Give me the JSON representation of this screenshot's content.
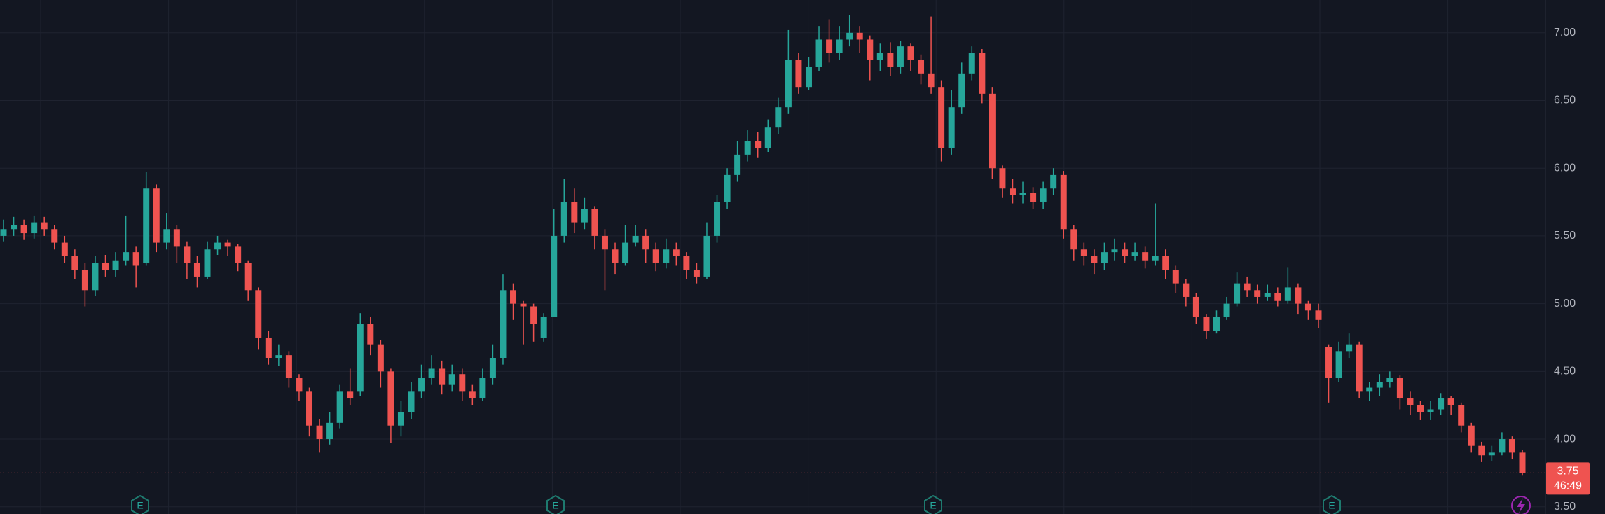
{
  "chart_data": {
    "type": "candlestick",
    "open": [
      5.5,
      5.55,
      5.58,
      5.52,
      5.6,
      5.55,
      5.45,
      5.35,
      5.25,
      5.1,
      5.3,
      5.25,
      5.32,
      5.38,
      5.3,
      5.85,
      5.45,
      5.55,
      5.42,
      5.3,
      5.2,
      5.4,
      5.45,
      5.42,
      5.3,
      5.1,
      4.75,
      4.6,
      4.62,
      4.45,
      4.35,
      4.1,
      4.0,
      4.12,
      4.35,
      4.35,
      4.85,
      4.7,
      4.5,
      4.1,
      4.2,
      4.35,
      4.45,
      4.52,
      4.4,
      4.48,
      4.35,
      4.3,
      4.45,
      4.6,
      5.1,
      5.0,
      4.98,
      4.75,
      4.9,
      5.5,
      5.75,
      5.6,
      5.7,
      5.5,
      5.4,
      5.3,
      5.45,
      5.5,
      5.4,
      5.3,
      5.4,
      5.35,
      5.25,
      5.2,
      5.5,
      5.75,
      5.95,
      6.1,
      6.2,
      6.15,
      6.3,
      6.45,
      6.8,
      6.6,
      6.75,
      6.95,
      6.85,
      6.95,
      7.0,
      6.95,
      6.8,
      6.85,
      6.75,
      6.9,
      6.8,
      6.7,
      6.6,
      6.15,
      6.45,
      6.7,
      6.85,
      6.55,
      6.0,
      5.85,
      5.8,
      5.82,
      5.75,
      5.85,
      5.95,
      5.55,
      5.4,
      5.35,
      5.3,
      5.38,
      5.4,
      5.35,
      5.38,
      5.32,
      5.35,
      5.25,
      5.15,
      5.05,
      4.9,
      4.8,
      4.9,
      5.0,
      5.15,
      5.1,
      5.05,
      5.08,
      5.02,
      5.12,
      5.0,
      4.95,
      4.68,
      4.45,
      4.65,
      4.7,
      4.35,
      4.38,
      4.42,
      4.45,
      4.3,
      4.25,
      4.2,
      4.22,
      4.3,
      4.25,
      4.1,
      3.95,
      3.88,
      3.9,
      4.0,
      3.9
    ],
    "high": [
      5.62,
      5.64,
      5.62,
      5.65,
      5.64,
      5.58,
      5.5,
      5.4,
      5.3,
      5.35,
      5.36,
      5.38,
      5.65,
      5.42,
      5.97,
      5.88,
      5.67,
      5.58,
      5.46,
      5.35,
      5.46,
      5.5,
      5.47,
      5.44,
      5.32,
      5.12,
      4.8,
      4.7,
      4.65,
      4.48,
      4.38,
      4.15,
      4.2,
      4.4,
      4.52,
      4.93,
      4.9,
      4.73,
      4.52,
      4.28,
      4.42,
      4.55,
      4.62,
      4.58,
      4.55,
      4.52,
      4.4,
      4.52,
      4.7,
      5.22,
      5.15,
      5.02,
      5.0,
      4.93,
      5.7,
      5.92,
      5.85,
      5.78,
      5.72,
      5.55,
      5.45,
      5.58,
      5.58,
      5.55,
      5.45,
      5.48,
      5.45,
      5.38,
      5.3,
      5.6,
      5.8,
      6.0,
      6.2,
      6.28,
      6.27,
      6.36,
      6.52,
      7.02,
      6.85,
      6.82,
      7.05,
      7.1,
      7.05,
      7.13,
      7.05,
      6.98,
      6.92,
      6.93,
      6.94,
      6.92,
      6.84,
      7.12,
      6.65,
      6.58,
      6.78,
      6.9,
      6.88,
      6.6,
      6.02,
      5.92,
      5.9,
      5.86,
      5.9,
      6.0,
      5.98,
      5.58,
      5.45,
      5.4,
      5.45,
      5.48,
      5.45,
      5.45,
      5.42,
      5.74,
      5.4,
      5.28,
      5.18,
      5.08,
      4.92,
      4.95,
      5.05,
      5.23,
      5.2,
      5.14,
      5.14,
      5.12,
      5.27,
      5.15,
      5.02,
      5.0,
      4.7,
      4.72,
      4.78,
      4.72,
      4.42,
      4.48,
      4.5,
      4.47,
      4.35,
      4.28,
      4.28,
      4.34,
      4.32,
      4.27,
      4.12,
      3.98,
      3.95,
      4.05,
      4.02,
      3.92
    ],
    "low": [
      5.46,
      5.5,
      5.47,
      5.48,
      5.5,
      5.4,
      5.3,
      5.18,
      4.98,
      5.06,
      5.2,
      5.2,
      5.28,
      5.12,
      5.28,
      5.38,
      5.4,
      5.3,
      5.18,
      5.12,
      5.18,
      5.36,
      5.35,
      5.24,
      5.02,
      4.66,
      4.55,
      4.54,
      4.38,
      4.28,
      4.02,
      3.9,
      3.96,
      4.08,
      4.25,
      4.32,
      4.62,
      4.38,
      3.97,
      4.02,
      4.15,
      4.3,
      4.4,
      4.33,
      4.35,
      4.28,
      4.25,
      4.28,
      4.4,
      4.55,
      4.88,
      4.7,
      4.72,
      4.72,
      4.9,
      5.45,
      5.52,
      5.55,
      5.4,
      5.1,
      5.22,
      5.28,
      5.42,
      5.3,
      5.24,
      5.26,
      5.28,
      5.18,
      5.15,
      5.18,
      5.45,
      5.7,
      5.9,
      6.05,
      6.08,
      6.12,
      6.25,
      6.4,
      6.55,
      6.58,
      6.72,
      6.78,
      6.8,
      6.9,
      6.85,
      6.65,
      6.72,
      6.68,
      6.7,
      6.72,
      6.62,
      6.55,
      6.05,
      6.1,
      6.4,
      6.65,
      6.48,
      5.92,
      5.78,
      5.74,
      5.74,
      5.7,
      5.7,
      5.8,
      5.48,
      5.32,
      5.28,
      5.22,
      5.25,
      5.32,
      5.3,
      5.32,
      5.26,
      5.28,
      5.18,
      5.08,
      4.98,
      4.85,
      4.74,
      4.78,
      4.88,
      4.98,
      5.05,
      5.0,
      5.02,
      4.98,
      5.0,
      4.92,
      4.88,
      4.82,
      4.27,
      4.42,
      4.6,
      4.3,
      4.28,
      4.32,
      4.38,
      4.22,
      4.18,
      4.14,
      4.14,
      4.18,
      4.18,
      4.05,
      3.9,
      3.83,
      3.84,
      3.88,
      3.85,
      3.73
    ],
    "close": [
      5.55,
      5.58,
      5.52,
      5.6,
      5.55,
      5.45,
      5.35,
      5.25,
      5.1,
      5.3,
      5.25,
      5.32,
      5.38,
      5.28,
      5.85,
      5.45,
      5.55,
      5.42,
      5.3,
      5.2,
      5.4,
      5.45,
      5.42,
      5.3,
      5.1,
      4.75,
      4.6,
      4.62,
      4.45,
      4.35,
      4.1,
      4.0,
      4.12,
      4.35,
      4.3,
      4.85,
      4.7,
      4.5,
      4.1,
      4.2,
      4.35,
      4.45,
      4.52,
      4.4,
      4.48,
      4.35,
      4.3,
      4.45,
      4.6,
      5.1,
      5.0,
      4.98,
      4.85,
      4.9,
      5.5,
      5.75,
      5.6,
      5.7,
      5.5,
      5.4,
      5.3,
      5.45,
      5.5,
      5.4,
      5.3,
      5.4,
      5.35,
      5.25,
      5.2,
      5.5,
      5.75,
      5.95,
      6.1,
      6.2,
      6.15,
      6.3,
      6.45,
      6.8,
      6.6,
      6.75,
      6.95,
      6.85,
      6.95,
      7.0,
      6.95,
      6.8,
      6.85,
      6.75,
      6.9,
      6.8,
      6.7,
      6.6,
      6.15,
      6.45,
      6.7,
      6.85,
      6.55,
      6.0,
      5.85,
      5.8,
      5.82,
      5.75,
      5.85,
      5.95,
      5.55,
      5.4,
      5.35,
      5.3,
      5.38,
      5.4,
      5.35,
      5.38,
      5.32,
      5.35,
      5.25,
      5.15,
      5.05,
      4.9,
      4.8,
      4.9,
      5.0,
      5.15,
      5.1,
      5.05,
      5.08,
      5.02,
      5.12,
      5.0,
      4.95,
      4.88,
      4.45,
      4.65,
      4.7,
      4.35,
      4.38,
      4.42,
      4.45,
      4.3,
      4.25,
      4.2,
      4.22,
      4.3,
      4.25,
      4.1,
      3.95,
      3.88,
      3.9,
      4.0,
      3.9,
      3.75
    ],
    "up_color": "#26a69a",
    "down_color": "#ef5350",
    "ylim": [
      3.447,
      7.242
    ],
    "yticks": [
      {
        "value": 3.5,
        "label": "3.50"
      },
      {
        "value": 4,
        "label": "4.00"
      },
      {
        "value": 4.5,
        "label": "4.50"
      },
      {
        "value": 5,
        "label": "5.00"
      },
      {
        "value": 5.5,
        "label": "5.50"
      },
      {
        "value": 6,
        "label": "6.00"
      },
      {
        "value": 6.5,
        "label": "6.50"
      },
      {
        "value": 7,
        "label": "7.00"
      }
    ],
    "grid": true,
    "last_price": {
      "value": 3.75,
      "label": "3.75"
    },
    "countdown": "46:49",
    "events": [
      "E",
      "E",
      "E",
      "E"
    ]
  }
}
